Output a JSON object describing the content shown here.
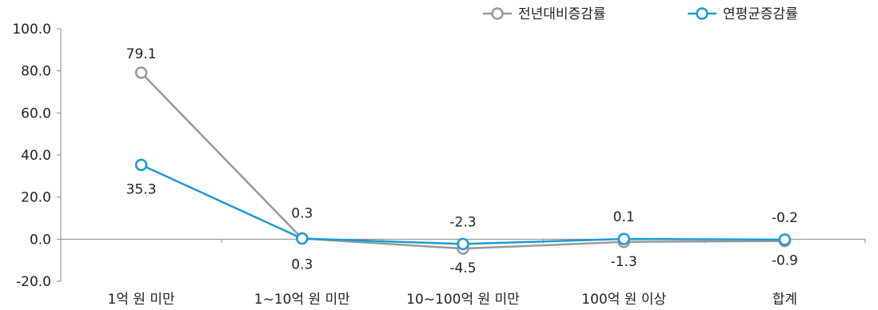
{
  "chart_data": {
    "type": "line",
    "categories": [
      "1억 원 미만",
      "1~10억 원 미만",
      "10~100억 원 미만",
      "100억 원 이상",
      "합계"
    ],
    "ylim": [
      -20,
      100
    ],
    "yticks": [
      "100.0",
      "80.0",
      "60.0",
      "40.0",
      "20.0",
      "0.0",
      "-20.0"
    ],
    "legend_position": "top-right",
    "grid": false,
    "series": [
      {
        "name": "전년대비증감률",
        "color": "#999999",
        "values": [
          79.1,
          0.3,
          -4.5,
          -1.3,
          -0.9
        ],
        "labels": [
          "79.1",
          "0.3",
          "-4.5",
          "-1.3",
          "-0.9"
        ]
      },
      {
        "name": "연평균증감률",
        "color": "#1a9ad6",
        "values": [
          35.3,
          0.3,
          -2.3,
          0.1,
          -0.2
        ],
        "labels": [
          "35.3",
          "0.3",
          "-2.3",
          "0.1",
          "-0.2"
        ]
      }
    ]
  }
}
